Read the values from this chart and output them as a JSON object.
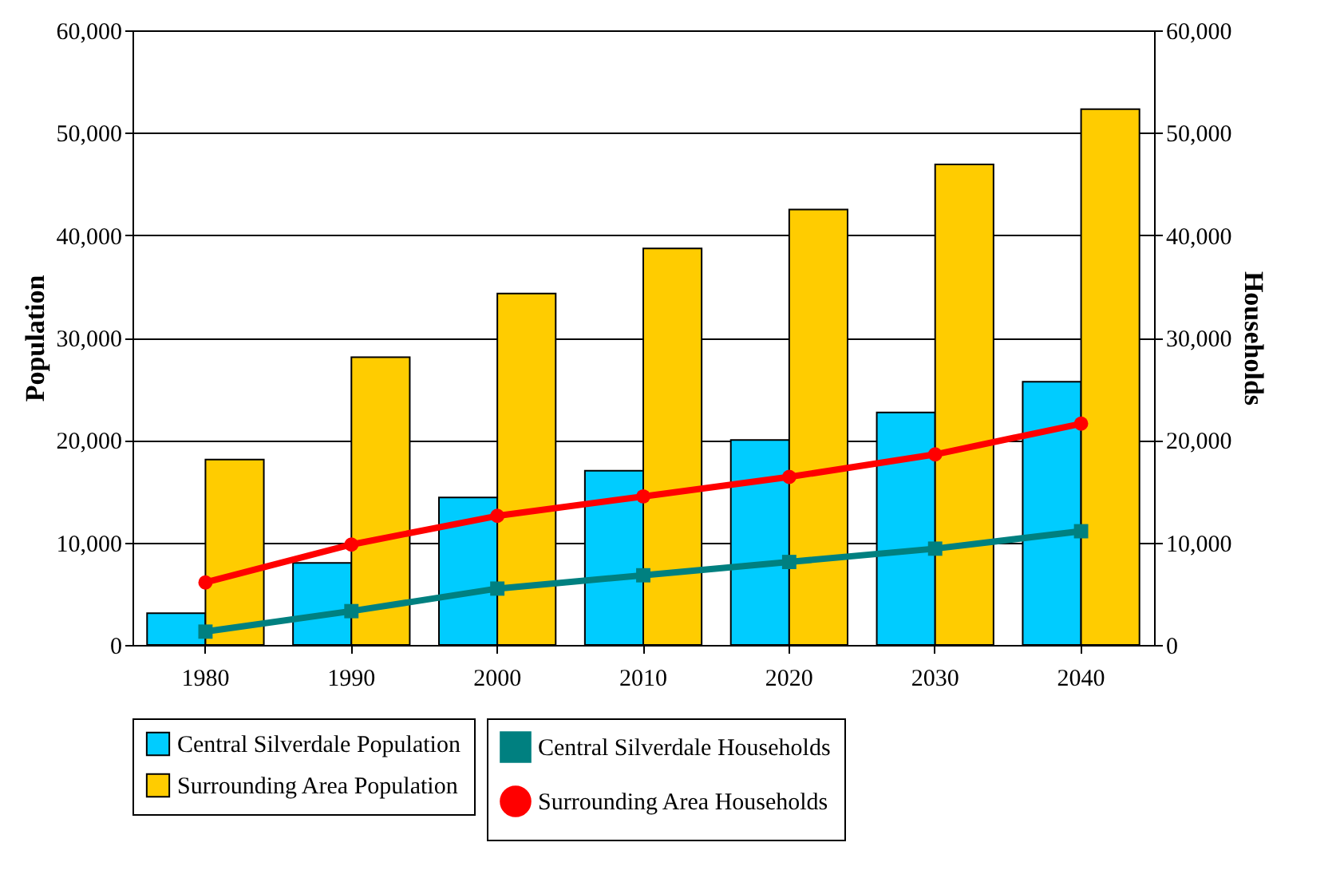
{
  "chart_data": {
    "type": "bar",
    "ylabel": "Population",
    "y2label": "Households",
    "categories": [
      "1980",
      "1990",
      "2000",
      "2010",
      "2020",
      "2030",
      "2040"
    ],
    "series": [
      {
        "name": "Central Silverdale Population",
        "color": "#00ccff",
        "values": [
          3100,
          8000,
          14400,
          17000,
          20000,
          22700,
          25700
        ]
      },
      {
        "name": "Surrounding Area Population",
        "color": "#ffcc00",
        "values": [
          18100,
          28100,
          34300,
          38700,
          42500,
          46900,
          52300
        ]
      },
      {
        "name": "Central Silverdale Households",
        "color": "#008080",
        "type": "line",
        "axis": "y2",
        "marker": "square",
        "values": [
          1300,
          3300,
          5500,
          6800,
          8100,
          9400,
          11100
        ]
      },
      {
        "name": "Surrounding Area Households",
        "color": "#ff0000",
        "type": "line",
        "axis": "y2",
        "marker": "circle",
        "values": [
          6100,
          9800,
          12600,
          14500,
          16400,
          18600,
          21600
        ]
      }
    ],
    "ylim": [
      0,
      60000
    ],
    "yticks": [
      0,
      {
        "value": 10000,
        "label": "10,000"
      },
      {
        "value": 20000,
        "label": "20,000"
      },
      {
        "value": 30000,
        "label": "30,000"
      },
      {
        "value": 40000,
        "label": "40,000"
      },
      {
        "value": 50000,
        "label": "50,000"
      },
      {
        "value": 60000,
        "label": "60,000"
      }
    ],
    "y2lim": [
      0,
      60000
    ],
    "y2ticks": [
      0,
      {
        "value": 10000,
        "label": "10,000"
      },
      {
        "value": 20000,
        "label": "20,000"
      },
      {
        "value": 30000,
        "label": "30,000"
      },
      {
        "value": 40000,
        "label": "40,000"
      },
      {
        "value": 50000,
        "label": "50,000"
      },
      {
        "value": 60000,
        "label": "60,000"
      }
    ],
    "grid": "y",
    "legend": "bottom"
  }
}
